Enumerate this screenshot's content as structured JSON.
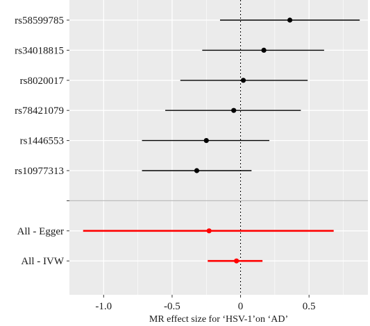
{
  "chart_data": {
    "type": "forest",
    "xlabel": "MR effect size for ‘HSV-1’on ‘AD’",
    "xlim": [
      -1.25,
      0.93
    ],
    "x_ticks": [
      -1.0,
      -0.5,
      0,
      0.5
    ],
    "x_tick_labels": [
      "-1.0",
      "-0.5",
      "0",
      "0.5"
    ],
    "reference_line": 0,
    "grid": true,
    "colors": {
      "snp": "#000000",
      "summary": "#ff0000",
      "panel": "#ebebeb",
      "grid": "#ffffff",
      "divider": "#bdbdbd"
    },
    "rows": [
      {
        "label": "rs58599785",
        "estimate": 0.36,
        "lower": -0.15,
        "upper": 0.87,
        "group": "snp"
      },
      {
        "label": "rs34018815",
        "estimate": 0.17,
        "lower": -0.28,
        "upper": 0.61,
        "group": "snp"
      },
      {
        "label": "rs8020017",
        "estimate": 0.02,
        "lower": -0.44,
        "upper": 0.49,
        "group": "snp"
      },
      {
        "label": "rs78421079",
        "estimate": -0.05,
        "lower": -0.55,
        "upper": 0.44,
        "group": "snp"
      },
      {
        "label": "rs1446553",
        "estimate": -0.25,
        "lower": -0.72,
        "upper": 0.21,
        "group": "snp"
      },
      {
        "label": "rs10977313",
        "estimate": -0.32,
        "lower": -0.72,
        "upper": 0.08,
        "group": "snp"
      },
      {
        "label": "",
        "estimate": null,
        "lower": null,
        "upper": null,
        "group": "divider"
      },
      {
        "label": "All - Egger",
        "estimate": -0.23,
        "lower": -1.15,
        "upper": 0.68,
        "group": "summary"
      },
      {
        "label": "All - IVW",
        "estimate": -0.03,
        "lower": -0.24,
        "upper": 0.16,
        "group": "summary"
      }
    ]
  }
}
